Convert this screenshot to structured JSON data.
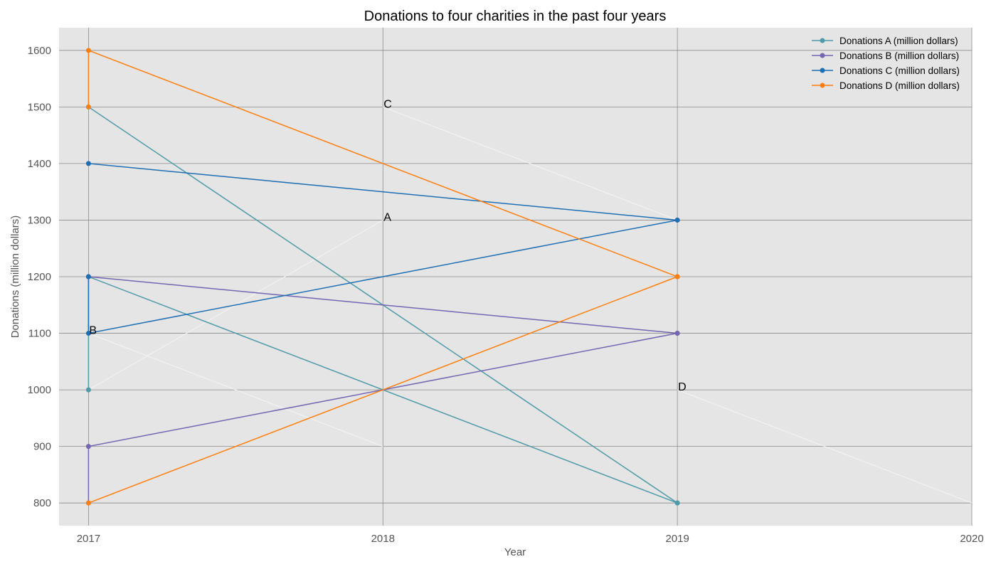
{
  "chart_data": {
    "type": "line",
    "title": "Donations to four charities in the past four years",
    "xlabel": "Year",
    "ylabel": "Donations (million dollars)",
    "x_ticks": [
      "2017",
      "2018",
      "2019",
      "2020"
    ],
    "x_tick_values": [
      2017,
      2018,
      2019,
      2020
    ],
    "y_ticks": [
      "800",
      "900",
      "1000",
      "1100",
      "1200",
      "1300",
      "1400",
      "1500",
      "1600"
    ],
    "y_tick_values": [
      800,
      900,
      1000,
      1100,
      1200,
      1300,
      1400,
      1500,
      1600
    ],
    "xlim": [
      2016.9,
      2020
    ],
    "ylim": [
      760,
      1640
    ],
    "grid": true,
    "legend_position": "top-right",
    "colors": {
      "plot_background": "#e5e5e5",
      "grid": "#8c8c8c",
      "faint_lines": "#f2f2f2"
    },
    "series": [
      {
        "name": "Donations A (million dollars)",
        "color": "#4f9aa8",
        "points": [
          [
            2017,
            1000
          ],
          [
            2017,
            1200
          ],
          [
            2019,
            800
          ],
          [
            2017,
            1500
          ],
          [
            2019,
            800
          ]
        ]
      },
      {
        "name": "Donations B (million dollars)",
        "color": "#7566b2",
        "points": [
          [
            2017,
            800
          ],
          [
            2017,
            900
          ],
          [
            2019,
            1100
          ],
          [
            2017,
            1200
          ],
          [
            2019,
            1100
          ]
        ]
      },
      {
        "name": "Donations C (million dollars)",
        "color": "#1f6fb4",
        "points": [
          [
            2017,
            1200
          ],
          [
            2017,
            1100
          ],
          [
            2019,
            1300
          ],
          [
            2017,
            1400
          ],
          [
            2019,
            1300
          ]
        ]
      },
      {
        "name": "Donations D (million dollars)",
        "color": "#ff7f0e",
        "points": [
          [
            2017,
            1500
          ],
          [
            2017,
            1600
          ],
          [
            2019,
            1200
          ],
          [
            2017,
            800
          ],
          [
            2019,
            1200
          ]
        ]
      }
    ],
    "annotations": [
      {
        "text": "A",
        "x": 2018,
        "y": 1300
      },
      {
        "text": "B",
        "x": 2017,
        "y": 1100
      },
      {
        "text": "C",
        "x": 2018,
        "y": 1500
      },
      {
        "text": "D",
        "x": 2019,
        "y": 1000
      }
    ],
    "faint_lines": [
      {
        "points": [
          [
            2017,
            1000
          ],
          [
            2018,
            1300
          ]
        ]
      },
      {
        "points": [
          [
            2017,
            1100
          ],
          [
            2018,
            900
          ]
        ]
      },
      {
        "points": [
          [
            2018,
            1500
          ],
          [
            2019,
            1300
          ]
        ]
      },
      {
        "points": [
          [
            2019,
            1000
          ],
          [
            2020,
            800
          ]
        ]
      }
    ]
  }
}
